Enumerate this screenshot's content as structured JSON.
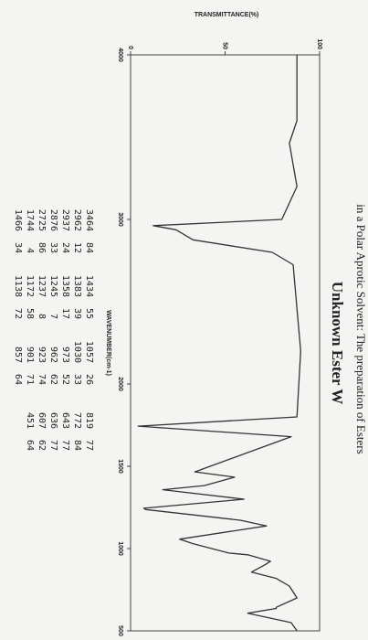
{
  "header": "in a Polar Aprotic Solvent: The preparation of Esters",
  "chart_data": {
    "type": "line",
    "title": "Unknown Ester W",
    "x_label": "WAVENUMBER(cm-1)",
    "y_label": "TRANSMITTANCE(%)",
    "x": [
      4000,
      3600,
      3464,
      3200,
      3000,
      2962,
      2937,
      2876,
      2800,
      2725,
      2200,
      1800,
      1744,
      1680,
      1466,
      1434,
      1383,
      1358,
      1300,
      1245,
      1237,
      1172,
      1138,
      1057,
      1030,
      973,
      962,
      923,
      901,
      857,
      819,
      772,
      700,
      643,
      636,
      607,
      550,
      500
    ],
    "values": [
      88,
      88,
      84,
      88,
      80,
      12,
      24,
      33,
      75,
      86,
      90,
      88,
      4,
      85,
      34,
      55,
      39,
      17,
      60,
      7,
      8,
      58,
      72,
      26,
      33,
      52,
      62,
      74,
      71,
      64,
      77,
      84,
      88,
      77,
      77,
      62,
      85,
      88
    ],
    "color": "#333333",
    "xlim": [
      4000,
      500
    ],
    "xticks": [
      4000,
      3000,
      2000,
      1500,
      1000,
      500
    ],
    "ylim": [
      0,
      100
    ],
    "yticks": [
      0,
      50,
      100
    ],
    "grid": false
  },
  "peak_table": [
    [
      [
        3464,
        84
      ],
      [
        2962,
        12
      ],
      [
        2937,
        24
      ],
      [
        2876,
        33
      ],
      [
        2725,
        86
      ],
      [
        1744,
        4
      ],
      [
        1466,
        34
      ]
    ],
    [
      [
        1434,
        55
      ],
      [
        1383,
        39
      ],
      [
        1358,
        17
      ],
      [
        1245,
        7
      ],
      [
        1237,
        8
      ],
      [
        1172,
        58
      ],
      [
        1138,
        72
      ]
    ],
    [
      [
        1057,
        26
      ],
      [
        1030,
        33
      ],
      [
        973,
        52
      ],
      [
        962,
        62
      ],
      [
        923,
        74
      ],
      [
        901,
        71
      ],
      [
        857,
        64
      ]
    ],
    [
      [
        819,
        77
      ],
      [
        772,
        84
      ],
      [
        643,
        77
      ],
      [
        636,
        77
      ],
      [
        607,
        62
      ],
      [
        451,
        64
      ]
    ]
  ]
}
